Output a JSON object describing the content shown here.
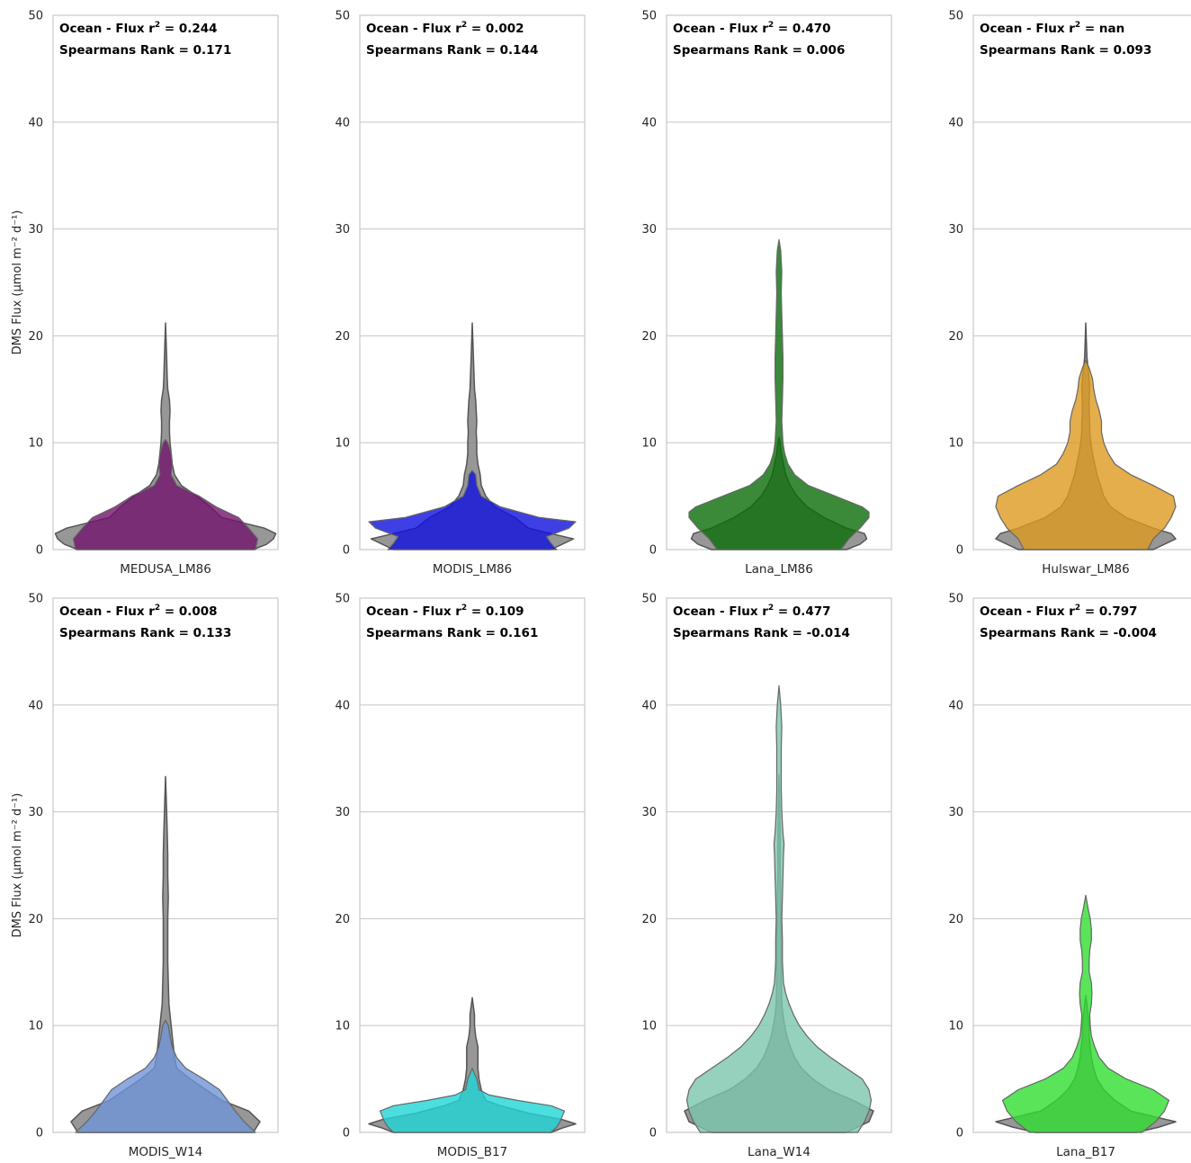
{
  "chart_data": [
    {
      "type": "violin",
      "xlabel": "MEDUSA_LM86",
      "ylabel": "DMS Flux (µmol m⁻² d⁻¹)",
      "ylim": [
        0,
        50
      ],
      "yticks": [
        0,
        10,
        20,
        30,
        40,
        50
      ],
      "grid": true,
      "annotation": {
        "r2_label": "Ocean - Flux r",
        "r2_value": "0.244",
        "spearman": "Spearmans Rank = 0.171"
      },
      "colors": {
        "model": "#71136c",
        "obs": "#808080"
      },
      "obs_profile": [
        [
          0,
          0.78
        ],
        [
          0.5,
          0.9
        ],
        [
          1,
          0.96
        ],
        [
          1.5,
          0.98
        ],
        [
          2,
          0.88
        ],
        [
          3,
          0.5
        ],
        [
          4,
          0.4
        ],
        [
          5,
          0.28
        ],
        [
          6,
          0.14
        ],
        [
          7,
          0.08
        ],
        [
          8,
          0.06
        ],
        [
          9,
          0.05
        ],
        [
          10,
          0.04
        ],
        [
          11,
          0.035
        ],
        [
          12,
          0.035
        ],
        [
          13,
          0.04
        ],
        [
          14,
          0.035
        ],
        [
          15,
          0.02
        ],
        [
          16,
          0.015
        ],
        [
          18,
          0.01
        ],
        [
          21.2,
          0
        ]
      ],
      "model_profile": [
        [
          0,
          0.8
        ],
        [
          1,
          0.82
        ],
        [
          2,
          0.74
        ],
        [
          3,
          0.65
        ],
        [
          4,
          0.45
        ],
        [
          5,
          0.3
        ],
        [
          6,
          0.1
        ],
        [
          7,
          0.05
        ],
        [
          8,
          0.06
        ],
        [
          9,
          0.05
        ],
        [
          10,
          0.02
        ],
        [
          10.3,
          0
        ]
      ]
    },
    {
      "type": "violin",
      "xlabel": "MODIS_LM86",
      "ylabel": "",
      "ylim": [
        0,
        50
      ],
      "yticks": [
        0,
        10,
        20,
        30,
        40,
        50
      ],
      "grid": true,
      "annotation": {
        "r2_label": "Ocean - Flux r",
        "r2_value": "0.002",
        "spearman": "Spearmans Rank = 0.144"
      },
      "colors": {
        "model": "#0f0fe0",
        "obs": "#808080"
      },
      "obs_profile": [
        [
          0,
          0.7
        ],
        [
          0.5,
          0.8
        ],
        [
          1,
          0.9
        ],
        [
          1.5,
          0.7
        ],
        [
          2,
          0.5
        ],
        [
          3,
          0.38
        ],
        [
          4,
          0.2
        ],
        [
          5,
          0.12
        ],
        [
          6,
          0.08
        ],
        [
          7,
          0.07
        ],
        [
          8,
          0.05
        ],
        [
          9,
          0.04
        ],
        [
          10,
          0.04
        ],
        [
          11,
          0.035
        ],
        [
          12,
          0.04
        ],
        [
          13,
          0.035
        ],
        [
          14,
          0.03
        ],
        [
          15,
          0.02
        ],
        [
          18,
          0.01
        ],
        [
          21.2,
          0
        ]
      ],
      "model_profile": [
        [
          0,
          0.75
        ],
        [
          0.6,
          0.7
        ],
        [
          1.2,
          0.66
        ],
        [
          2,
          0.86
        ],
        [
          2.6,
          0.92
        ],
        [
          3,
          0.6
        ],
        [
          4,
          0.25
        ],
        [
          5,
          0.08
        ],
        [
          6,
          0.04
        ],
        [
          7,
          0.03
        ],
        [
          7.4,
          0
        ]
      ]
    },
    {
      "type": "violin",
      "xlabel": "Lana_LM86",
      "ylabel": "",
      "ylim": [
        0,
        50
      ],
      "yticks": [
        0,
        10,
        20,
        30,
        40,
        50
      ],
      "grid": true,
      "annotation": {
        "r2_label": "Ocean - Flux r",
        "r2_value": "0.470",
        "spearman": "Spearmans Rank = 0.006"
      },
      "colors": {
        "model": "#096d09",
        "obs": "#808080"
      },
      "obs_profile": [
        [
          0,
          0.6
        ],
        [
          0.5,
          0.72
        ],
        [
          1,
          0.78
        ],
        [
          1.5,
          0.76
        ],
        [
          2,
          0.6
        ],
        [
          3,
          0.4
        ],
        [
          4,
          0.25
        ],
        [
          5,
          0.16
        ],
        [
          6,
          0.1
        ],
        [
          7,
          0.06
        ],
        [
          8,
          0.04
        ],
        [
          9,
          0.02
        ],
        [
          10,
          0.01
        ],
        [
          10.5,
          0
        ]
      ],
      "model_profile": [
        [
          0,
          0.55
        ],
        [
          1,
          0.62
        ],
        [
          2,
          0.72
        ],
        [
          3,
          0.8
        ],
        [
          3.5,
          0.8
        ],
        [
          4,
          0.74
        ],
        [
          5,
          0.5
        ],
        [
          6,
          0.26
        ],
        [
          7,
          0.14
        ],
        [
          8,
          0.08
        ],
        [
          9,
          0.05
        ],
        [
          10,
          0.035
        ],
        [
          12,
          0.025
        ],
        [
          14,
          0.03
        ],
        [
          16,
          0.035
        ],
        [
          18,
          0.035
        ],
        [
          20,
          0.03
        ],
        [
          22,
          0.025
        ],
        [
          24,
          0.02
        ],
        [
          26,
          0.025
        ],
        [
          28,
          0.015
        ],
        [
          29,
          0
        ]
      ]
    },
    {
      "type": "violin",
      "xlabel": "Hulswar_LM86",
      "ylabel": "",
      "ylim": [
        0,
        50
      ],
      "yticks": [
        0,
        10,
        20,
        30,
        40,
        50
      ],
      "grid": true,
      "annotation": {
        "r2_label": "Ocean - Flux r",
        "r2_value": "nan",
        "spearman": "Spearmans Rank = 0.093"
      },
      "colors": {
        "model": "#dd9a1f",
        "obs": "#808080"
      },
      "obs_profile": [
        [
          0,
          0.6
        ],
        [
          0.5,
          0.7
        ],
        [
          1,
          0.8
        ],
        [
          1.5,
          0.76
        ],
        [
          2,
          0.6
        ],
        [
          3,
          0.36
        ],
        [
          4,
          0.22
        ],
        [
          5,
          0.16
        ],
        [
          6,
          0.13
        ],
        [
          7,
          0.1
        ],
        [
          8,
          0.08
        ],
        [
          9,
          0.06
        ],
        [
          10,
          0.045
        ],
        [
          11,
          0.035
        ],
        [
          12,
          0.035
        ],
        [
          13,
          0.03
        ],
        [
          14,
          0.03
        ],
        [
          15,
          0.035
        ],
        [
          16,
          0.03
        ],
        [
          18,
          0.01
        ],
        [
          21.2,
          0
        ]
      ],
      "model_profile": [
        [
          0,
          0.55
        ],
        [
          1,
          0.6
        ],
        [
          2,
          0.7
        ],
        [
          3,
          0.76
        ],
        [
          4,
          0.8
        ],
        [
          5,
          0.78
        ],
        [
          6,
          0.6
        ],
        [
          7,
          0.4
        ],
        [
          8,
          0.26
        ],
        [
          9,
          0.2
        ],
        [
          10,
          0.16
        ],
        [
          11,
          0.14
        ],
        [
          12,
          0.14
        ],
        [
          13,
          0.12
        ],
        [
          14,
          0.09
        ],
        [
          15,
          0.07
        ],
        [
          16,
          0.06
        ],
        [
          17,
          0.03
        ],
        [
          17.7,
          0
        ]
      ]
    },
    {
      "type": "violin",
      "xlabel": "MODIS_W14",
      "ylabel": "DMS Flux (µmol m⁻² d⁻¹)",
      "ylim": [
        0,
        50
      ],
      "yticks": [
        0,
        10,
        20,
        30,
        40,
        50
      ],
      "grid": true,
      "annotation": {
        "r2_label": "Ocean - Flux r",
        "r2_value": "0.008",
        "spearman": "Spearmans Rank = 0.133"
      },
      "colors": {
        "model": "#6f93d8",
        "obs": "#808080"
      },
      "obs_profile": [
        [
          0,
          0.78
        ],
        [
          1,
          0.84
        ],
        [
          2,
          0.74
        ],
        [
          3,
          0.5
        ],
        [
          4,
          0.36
        ],
        [
          5,
          0.22
        ],
        [
          6,
          0.1
        ],
        [
          7,
          0.08
        ],
        [
          8,
          0.07
        ],
        [
          9,
          0.06
        ],
        [
          10,
          0.05
        ],
        [
          11,
          0.04
        ],
        [
          12,
          0.03
        ],
        [
          14,
          0.025
        ],
        [
          16,
          0.02
        ],
        [
          18,
          0.02
        ],
        [
          20,
          0.02
        ],
        [
          22,
          0.025
        ],
        [
          24,
          0.02
        ],
        [
          26,
          0.02
        ],
        [
          28,
          0.015
        ],
        [
          30,
          0.01
        ],
        [
          33.3,
          0
        ]
      ],
      "model_profile": [
        [
          0,
          0.8
        ],
        [
          1,
          0.7
        ],
        [
          2,
          0.62
        ],
        [
          3,
          0.55
        ],
        [
          4,
          0.48
        ],
        [
          5,
          0.34
        ],
        [
          6,
          0.18
        ],
        [
          7,
          0.1
        ],
        [
          8,
          0.06
        ],
        [
          9,
          0.04
        ],
        [
          10,
          0.025
        ],
        [
          10.5,
          0
        ]
      ]
    },
    {
      "type": "violin",
      "xlabel": "MODIS_B17",
      "ylabel": "",
      "ylim": [
        0,
        50
      ],
      "yticks": [
        0,
        10,
        20,
        30,
        40,
        50
      ],
      "grid": true,
      "annotation": {
        "r2_label": "Ocean - Flux r",
        "r2_value": "0.109",
        "spearman": "Spearmans Rank = 0.161"
      },
      "colors": {
        "model": "#1fd6d6",
        "obs": "#808080"
      },
      "obs_profile": [
        [
          0,
          0.7
        ],
        [
          0.4,
          0.8
        ],
        [
          0.8,
          0.92
        ],
        [
          1.2,
          0.8
        ],
        [
          1.8,
          0.5
        ],
        [
          2.5,
          0.25
        ],
        [
          3,
          0.12
        ],
        [
          4,
          0.08
        ],
        [
          5,
          0.06
        ],
        [
          6,
          0.05
        ],
        [
          7,
          0.05
        ],
        [
          8,
          0.05
        ],
        [
          9,
          0.03
        ],
        [
          10,
          0.02
        ],
        [
          11,
          0.02
        ],
        [
          12.6,
          0
        ]
      ],
      "model_profile": [
        [
          0,
          0.7
        ],
        [
          0.5,
          0.75
        ],
        [
          1,
          0.78
        ],
        [
          1.5,
          0.8
        ],
        [
          2,
          0.82
        ],
        [
          2.5,
          0.7
        ],
        [
          3,
          0.4
        ],
        [
          3.5,
          0.15
        ],
        [
          4,
          0.06
        ],
        [
          5,
          0.04
        ],
        [
          5.5,
          0.02
        ],
        [
          6,
          0
        ]
      ]
    },
    {
      "type": "violin",
      "xlabel": "Lana_W14",
      "ylabel": "",
      "ylim": [
        0,
        50
      ],
      "yticks": [
        0,
        10,
        20,
        30,
        40,
        50
      ],
      "grid": true,
      "annotation": {
        "r2_label": "Ocean - Flux r",
        "r2_value": "0.477",
        "spearman": "Spearmans Rank = -0.014"
      },
      "colors": {
        "model": "#7cc6ae",
        "obs": "#808080"
      },
      "obs_profile": [
        [
          0,
          0.6
        ],
        [
          1,
          0.8
        ],
        [
          2,
          0.84
        ],
        [
          3,
          0.66
        ],
        [
          4,
          0.44
        ],
        [
          5,
          0.3
        ],
        [
          6,
          0.2
        ],
        [
          7,
          0.14
        ],
        [
          8,
          0.1
        ],
        [
          9,
          0.07
        ],
        [
          10,
          0.05
        ],
        [
          11,
          0.035
        ],
        [
          12,
          0.025
        ],
        [
          14,
          0.02
        ],
        [
          16,
          0.02
        ],
        [
          18,
          0.02
        ],
        [
          20,
          0.015
        ],
        [
          22,
          0.015
        ],
        [
          24,
          0.01
        ],
        [
          28,
          0.01
        ],
        [
          33.5,
          0
        ]
      ],
      "model_profile": [
        [
          0,
          0.7
        ],
        [
          1,
          0.76
        ],
        [
          2,
          0.8
        ],
        [
          3,
          0.82
        ],
        [
          4,
          0.8
        ],
        [
          5,
          0.74
        ],
        [
          6,
          0.6
        ],
        [
          7,
          0.46
        ],
        [
          8,
          0.34
        ],
        [
          9,
          0.25
        ],
        [
          10,
          0.18
        ],
        [
          11,
          0.13
        ],
        [
          12,
          0.09
        ],
        [
          13,
          0.06
        ],
        [
          14,
          0.04
        ],
        [
          16,
          0.03
        ],
        [
          18,
          0.03
        ],
        [
          20,
          0.025
        ],
        [
          22,
          0.03
        ],
        [
          24,
          0.035
        ],
        [
          26,
          0.04
        ],
        [
          27,
          0.045
        ],
        [
          28,
          0.035
        ],
        [
          30,
          0.025
        ],
        [
          32,
          0.02
        ],
        [
          34,
          0.02
        ],
        [
          36,
          0.02
        ],
        [
          38,
          0.025
        ],
        [
          40,
          0.015
        ],
        [
          41.8,
          0
        ]
      ]
    },
    {
      "type": "violin",
      "xlabel": "Lana_B17",
      "ylabel": "",
      "ylim": [
        0,
        50
      ],
      "yticks": [
        0,
        10,
        20,
        30,
        40,
        50
      ],
      "grid": true,
      "annotation": {
        "r2_label": "Ocean - Flux r",
        "r2_value": "0.797",
        "spearman": "Spearmans Rank = -0.004"
      },
      "colors": {
        "model": "#2fdd2f",
        "obs": "#808080"
      },
      "obs_profile": [
        [
          0,
          0.45
        ],
        [
          0.5,
          0.65
        ],
        [
          1,
          0.8
        ],
        [
          1.5,
          0.6
        ],
        [
          2,
          0.4
        ],
        [
          3,
          0.26
        ],
        [
          4,
          0.16
        ],
        [
          5,
          0.1
        ],
        [
          6,
          0.07
        ],
        [
          7,
          0.05
        ],
        [
          8,
          0.04
        ],
        [
          9,
          0.03
        ],
        [
          10,
          0.03
        ],
        [
          11,
          0.02
        ],
        [
          12,
          0.01
        ],
        [
          12.8,
          0
        ]
      ],
      "model_profile": [
        [
          0,
          0.5
        ],
        [
          1,
          0.62
        ],
        [
          2,
          0.7
        ],
        [
          3,
          0.74
        ],
        [
          4,
          0.6
        ],
        [
          5,
          0.36
        ],
        [
          6,
          0.2
        ],
        [
          7,
          0.12
        ],
        [
          8,
          0.08
        ],
        [
          9,
          0.05
        ],
        [
          10,
          0.04
        ],
        [
          11,
          0.035
        ],
        [
          12,
          0.05
        ],
        [
          13,
          0.055
        ],
        [
          14,
          0.05
        ],
        [
          15,
          0.03
        ],
        [
          16,
          0.03
        ],
        [
          17,
          0.035
        ],
        [
          18,
          0.05
        ],
        [
          19,
          0.05
        ],
        [
          20,
          0.04
        ],
        [
          21,
          0.02
        ],
        [
          22.2,
          0
        ]
      ]
    }
  ]
}
